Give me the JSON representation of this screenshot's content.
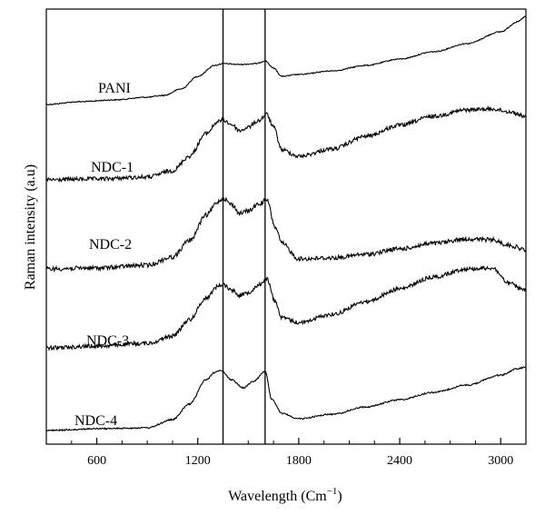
{
  "chart_data": {
    "type": "line",
    "xlabel": "Wavelength (Cm",
    "xlabel_sup": "−1",
    "xlabel_close": ")",
    "ylabel": "Raman intensity (a.u)",
    "xlim": [
      300,
      3150
    ],
    "x_ticks": [
      600,
      1200,
      1800,
      2400,
      3000
    ],
    "x_tick_labels": [
      "600",
      "1200",
      "1800",
      "2400",
      "3000"
    ],
    "reference_lines_x": [
      1350,
      1600
    ],
    "grid": false,
    "legend": "inline labels",
    "series": [
      {
        "name": "PANI",
        "noise": 0.6,
        "points": [
          [
            300,
            115
          ],
          [
            500,
            112
          ],
          [
            700,
            110
          ],
          [
            900,
            107
          ],
          [
            1000,
            105
          ],
          [
            1100,
            98
          ],
          [
            1200,
            84
          ],
          [
            1300,
            72
          ],
          [
            1350,
            70
          ],
          [
            1450,
            71
          ],
          [
            1550,
            70
          ],
          [
            1600,
            67
          ],
          [
            1650,
            75
          ],
          [
            1700,
            84
          ],
          [
            1800,
            82
          ],
          [
            2000,
            78
          ],
          [
            2200,
            72
          ],
          [
            2400,
            65
          ],
          [
            2600,
            57
          ],
          [
            2800,
            48
          ],
          [
            3000,
            35
          ],
          [
            3100,
            24
          ],
          [
            3150,
            18
          ]
        ]
      },
      {
        "name": "NDC-1",
        "noise": 2.2,
        "points": [
          [
            300,
            198
          ],
          [
            600,
            197
          ],
          [
            900,
            195
          ],
          [
            1050,
            188
          ],
          [
            1150,
            172
          ],
          [
            1250,
            147
          ],
          [
            1320,
            134
          ],
          [
            1350,
            132
          ],
          [
            1400,
            137
          ],
          [
            1450,
            144
          ],
          [
            1500,
            140
          ],
          [
            1560,
            133
          ],
          [
            1610,
            126
          ],
          [
            1650,
            140
          ],
          [
            1700,
            165
          ],
          [
            1800,
            172
          ],
          [
            2000,
            164
          ],
          [
            2200,
            150
          ],
          [
            2400,
            138
          ],
          [
            2600,
            128
          ],
          [
            2800,
            121
          ],
          [
            2950,
            120
          ],
          [
            3050,
            123
          ],
          [
            3150,
            128
          ]
        ]
      },
      {
        "name": "NDC-2",
        "noise": 2.4,
        "points": [
          [
            300,
            296
          ],
          [
            600,
            295
          ],
          [
            900,
            292
          ],
          [
            1050,
            283
          ],
          [
            1150,
            265
          ],
          [
            1250,
            237
          ],
          [
            1320,
            222
          ],
          [
            1350,
            218
          ],
          [
            1400,
            225
          ],
          [
            1450,
            235
          ],
          [
            1500,
            232
          ],
          [
            1560,
            225
          ],
          [
            1610,
            220
          ],
          [
            1660,
            250
          ],
          [
            1700,
            268
          ],
          [
            1800,
            285
          ],
          [
            2000,
            284
          ],
          [
            2200,
            280
          ],
          [
            2400,
            274
          ],
          [
            2600,
            268
          ],
          [
            2800,
            263
          ],
          [
            2950,
            264
          ],
          [
            3050,
            270
          ],
          [
            3150,
            275
          ]
        ]
      },
      {
        "name": "NDC-3",
        "noise": 2.2,
        "points": [
          [
            300,
            383
          ],
          [
            600,
            381
          ],
          [
            900,
            378
          ],
          [
            1050,
            370
          ],
          [
            1150,
            352
          ],
          [
            1250,
            328
          ],
          [
            1320,
            315
          ],
          [
            1350,
            313
          ],
          [
            1400,
            319
          ],
          [
            1450,
            325
          ],
          [
            1500,
            322
          ],
          [
            1560,
            314
          ],
          [
            1610,
            307
          ],
          [
            1660,
            332
          ],
          [
            1700,
            350
          ],
          [
            1800,
            355
          ],
          [
            2000,
            346
          ],
          [
            2200,
            332
          ],
          [
            2400,
            318
          ],
          [
            2600,
            305
          ],
          [
            2800,
            296
          ],
          [
            2950,
            295
          ],
          [
            3050,
            312
          ],
          [
            3150,
            320
          ]
        ]
      },
      {
        "name": "NDC-4",
        "noise": 0.8,
        "points": [
          [
            300,
            474
          ],
          [
            600,
            472
          ],
          [
            900,
            471
          ],
          [
            1050,
            462
          ],
          [
            1150,
            445
          ],
          [
            1250,
            418
          ],
          [
            1300,
            410
          ],
          [
            1340,
            408
          ],
          [
            1400,
            418
          ],
          [
            1470,
            427
          ],
          [
            1530,
            420
          ],
          [
            1600,
            409
          ],
          [
            1640,
            440
          ],
          [
            1700,
            455
          ],
          [
            1800,
            461
          ],
          [
            2000,
            456
          ],
          [
            2200,
            448
          ],
          [
            2400,
            440
          ],
          [
            2600,
            432
          ],
          [
            2800,
            424
          ],
          [
            3000,
            413
          ],
          [
            3100,
            406
          ],
          [
            3150,
            404
          ]
        ]
      }
    ]
  }
}
